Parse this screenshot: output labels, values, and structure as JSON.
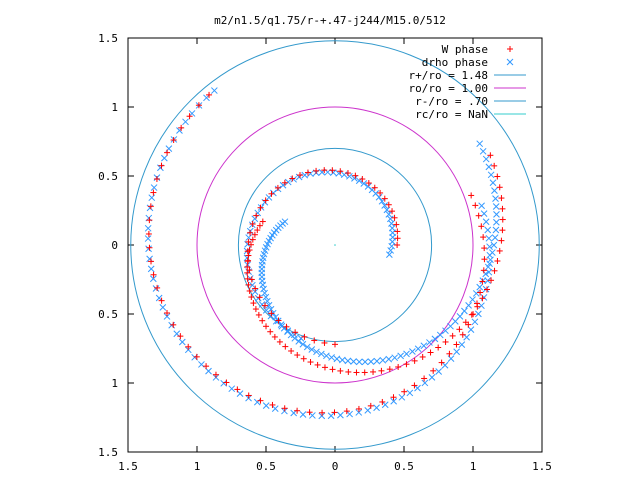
{
  "chart_data": {
    "type": "scatter",
    "title": "m2/n1.5/q1.75/r-+.47-j244/M15.0/512",
    "xlabel": "",
    "ylabel": "",
    "xlim": [
      -1.5,
      1.5
    ],
    "ylim": [
      -1.5,
      1.5
    ],
    "x_tick_labels": [
      "1.5",
      "1",
      "0.5",
      "0",
      "0.5",
      "1",
      "1.5"
    ],
    "y_tick_labels": [
      "1.5",
      "1",
      "0.5",
      "0",
      "0.5",
      "1",
      "1.5"
    ],
    "legend_position": "top-right",
    "legend": [
      {
        "label": "W phase",
        "color": "#ff0000",
        "marker": "plus"
      },
      {
        "label": "drho phase",
        "color": "#3399ff",
        "marker": "cross"
      },
      {
        "label": "r+/ro = 1.48",
        "color": "#3399cc",
        "marker": "line"
      },
      {
        "label": "ro/ro = 1.00",
        "color": "#cc33cc",
        "marker": "line"
      },
      {
        "label": "r-/ro = .70",
        "color": "#3399cc",
        "marker": "line"
      },
      {
        "label": "rc/ro = NaN",
        "color": "#33cccc",
        "marker": "line"
      }
    ],
    "circles": [
      {
        "name": "r+/ro = 1.48",
        "r": 1.48,
        "color": "#3399cc"
      },
      {
        "name": "ro/ro = 1.00",
        "r": 1.0,
        "color": "#cc33cc"
      },
      {
        "name": "r-/ro = .70",
        "r": 0.7,
        "color": "#3399cc"
      }
    ],
    "series": [
      {
        "name": "W phase",
        "color": "#ff0000",
        "arms": [
          {
            "theta_start_deg": 162,
            "theta_end_deg": 390,
            "r_start": 0.55,
            "r_end": 1.3,
            "n": 65
          },
          {
            "theta_start_deg": 20,
            "theta_end_deg": -230,
            "r_start": 1.05,
            "r_end": 1.42,
            "n": 60
          },
          {
            "theta_start_deg": 0,
            "theta_end_deg": 270,
            "r_start": 0.45,
            "r_end": 0.72,
            "n": 45
          }
        ]
      },
      {
        "name": "drho phase",
        "color": "#3399ff",
        "arms": [
          {
            "theta_start_deg": 155,
            "theta_end_deg": 395,
            "r_start": 0.4,
            "r_end": 1.28,
            "n": 90
          },
          {
            "theta_start_deg": 15,
            "theta_end_deg": -232,
            "r_start": 1.1,
            "r_end": 1.42,
            "n": 80
          },
          {
            "theta_start_deg": -10,
            "theta_end_deg": 250,
            "r_start": 0.4,
            "r_end": 0.72,
            "n": 60
          }
        ]
      }
    ]
  }
}
